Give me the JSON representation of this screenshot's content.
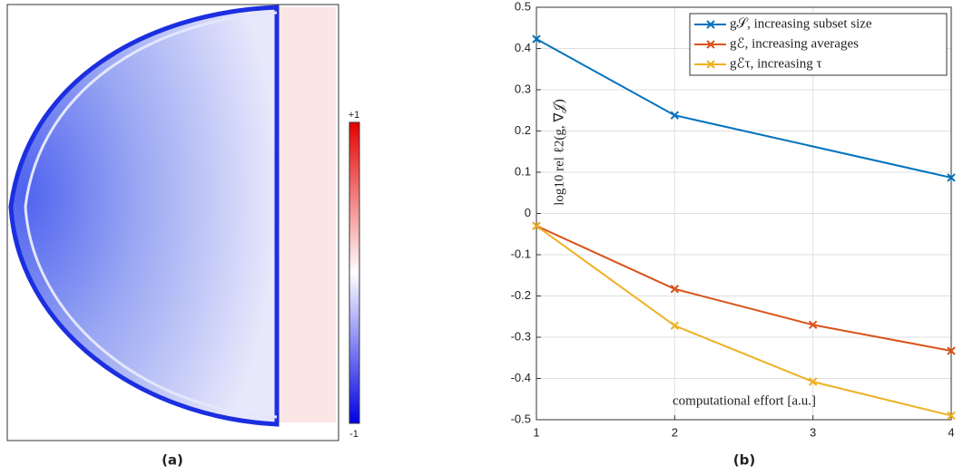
{
  "chart_data": [
    {
      "type": "heatmap-image",
      "caption": "(a)",
      "colormap": [
        "#0000e6",
        "#ffffff",
        "#e60000"
      ],
      "colorbar_lim": [
        -1,
        1
      ],
      "colorbar_ticks": [
        {
          "value": 1,
          "label": "+1"
        },
        -1
      ]
    },
    {
      "type": "line",
      "caption": "(b)",
      "xlabel": "computational effort [a.u.]",
      "ylabel": "log10 rel ℓ2(g, ∇𝒥)",
      "xlim": [
        1,
        4
      ],
      "xticks": [
        1,
        2,
        3,
        4
      ],
      "ylim": [
        -0.5,
        0.5
      ],
      "yticks": [
        -0.5,
        -0.4,
        -0.3,
        -0.2,
        -0.1,
        0,
        0.1,
        0.2,
        0.3,
        0.4,
        0.5
      ],
      "grid": true,
      "legend": "top-right",
      "series": [
        {
          "name": "g𝒮, increasing subset size",
          "color": "#0072bd",
          "x": [
            1,
            2,
            4
          ],
          "values": [
            0.423,
            0.238,
            0.087
          ]
        },
        {
          "name": "gℰ, increasing averages",
          "color": "#d95319",
          "x": [
            1,
            2,
            3,
            4
          ],
          "values": [
            -0.03,
            -0.183,
            -0.27,
            -0.333
          ]
        },
        {
          "name": "gℰτ, increasing τ",
          "color": "#edb120",
          "x": [
            1,
            2,
            3,
            4
          ],
          "values": [
            -0.03,
            -0.272,
            -0.408,
            -0.49
          ]
        }
      ]
    }
  ]
}
